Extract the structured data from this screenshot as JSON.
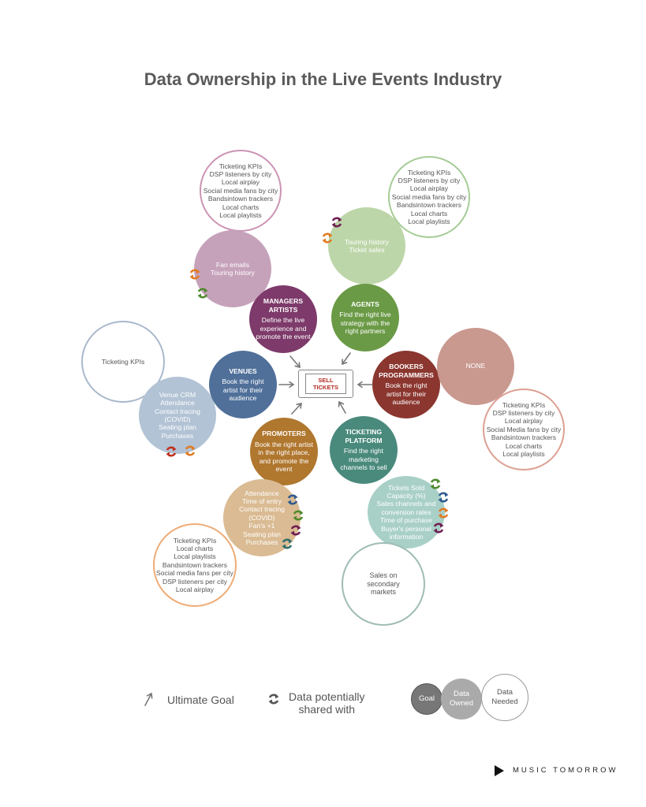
{
  "title": "Data Ownership in the Live Events Industry",
  "center": {
    "label": "SELL\nTICKETS"
  },
  "nodes": {
    "managers": {
      "title": "MANAGERS\nARTISTS",
      "goal": "Define the live experience and promote the event",
      "owned": "Fan emails\nTouring history",
      "needed": "Ticketing KPIs\nDSP listeners by city\nLocal airplay\nSocial media fans by city\nBandsintown trackers\nLocal charts\nLocal playlists",
      "colors": {
        "goal": "#7d3a6a",
        "owned": "#c6a2ba",
        "needed_border": "#cc94b4"
      }
    },
    "agents": {
      "title": "AGENTS",
      "goal": "Find the right live strategy with the right partners",
      "owned": "Touring history\nTicket sales",
      "needed": "Ticketing KPIs\nDSP listeners by city\nLocal airplay\nSocial media fans by city\nBandsintown trackers\nLocal charts\nLocal playlists",
      "colors": {
        "goal": "#6b9a46",
        "owned": "#bdd6a9",
        "needed_border": "#a6cc96"
      }
    },
    "venues": {
      "title": "VENUES",
      "goal": "Book the right artist for their audience",
      "owned": "Venue CRM\nAttendance\nContact tracing\n(COVID)\nSeating plan\nPurchases",
      "needed": "Ticketing KPIs",
      "colors": {
        "goal": "#50709a",
        "owned": "#b2c3d5",
        "needed_border": "#a9b8cc"
      }
    },
    "bookers": {
      "title": "BOOKERS\nPROGRAMMERS",
      "goal": "Book the right artist for their audience",
      "owned": "NONE",
      "needed": "Ticketing KPIs\nDSP listeners by city\nLocal airplay\nSocial Media fans by city\nBandsintown trackers\nLocal charts\nLocal playlists",
      "colors": {
        "goal": "#8b362f",
        "owned": "#c9988f",
        "needed_border": "#dca092"
      }
    },
    "promoters": {
      "title": "PROMOTERS",
      "goal": "Book the right artist in the right place, and promote the event",
      "owned": "Attendance\nTime of entry\nContact tracing\n(COVID)\nFan's +1\nSeating plan\nPurchases",
      "needed": "Ticketing KPIs\nLocal charts\nLocal playlists\nBandsintown trackers\nSocial media fans per city\nDSP listeners per city\nLocal airplay",
      "colors": {
        "goal": "#b0772f",
        "owned": "#dabb93",
        "needed_border": "#eeac76"
      }
    },
    "ticketing": {
      "title": "TICKETING\nPLATFORM",
      "goal": "Find the right marketing channels to sell",
      "owned": "Tickets Sold\nCapacity (%)\nSales channels and\nconversion rates\nTime of purchase\nBuyer's personal\ninformation",
      "needed": "Sales on\nsecondary\nmarkets",
      "colors": {
        "goal": "#4a8a7d",
        "owned": "#a9d0c7",
        "needed_border": "#9fbcb6"
      }
    }
  },
  "share_icons_colors": {
    "orange": "#e07b24",
    "green": "#4f8a2c",
    "purple": "#6e1f52",
    "red": "#c0301e",
    "blue": "#2f5b8f",
    "teal": "#2f6e6a"
  },
  "legend": {
    "ultimate_goal": "Ultimate Goal",
    "shared": "Data potentially\nshared with",
    "goal": "Goal",
    "owned": "Data\nOwned",
    "needed": "Data\nNeeded"
  },
  "brand": "MUSIC TOMORROW"
}
